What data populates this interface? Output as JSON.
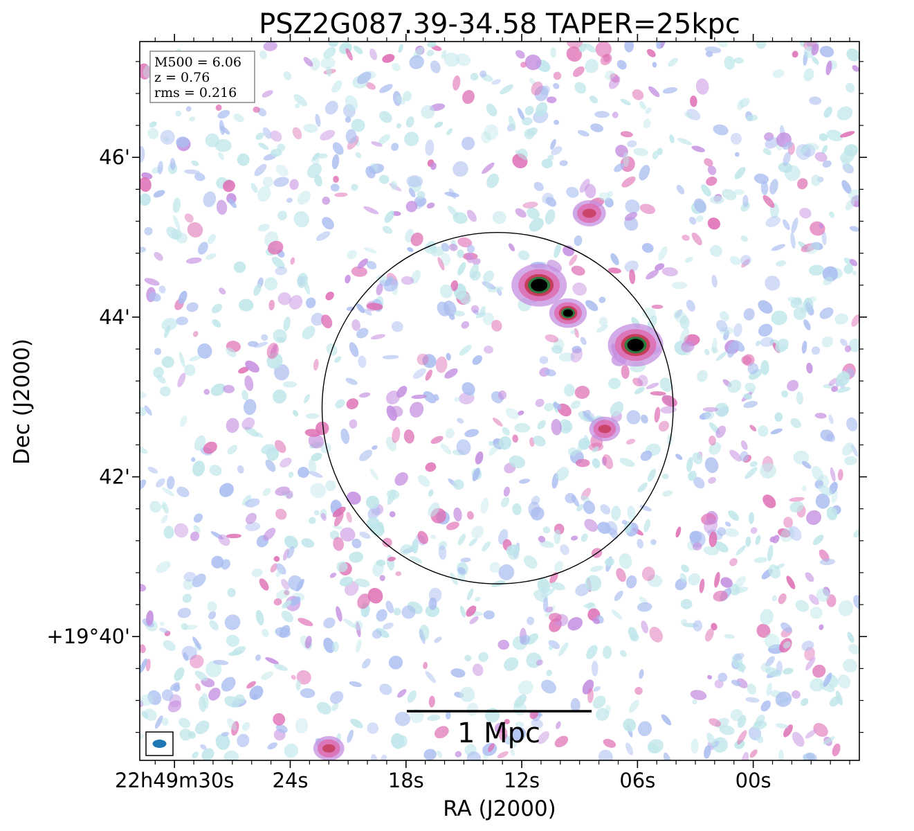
{
  "chart_data": {
    "type": "heatmap",
    "title": "PSZ2G087.39-34.58 TAPER=25kpc",
    "xlabel": "RA (J2000)",
    "ylabel": "Dec (J2000)",
    "x_ticks": [
      "22h49m30s",
      "24s",
      "18s",
      "12s",
      "06s",
      "00s"
    ],
    "y_ticks": [
      "+19°40'",
      "42'",
      "44'",
      "46'"
    ],
    "x_tick_seconds": [
      30,
      24,
      18,
      12,
      6,
      0
    ],
    "y_tick_arcmin": [
      40,
      42,
      44,
      46
    ],
    "x_range_seconds": [
      31.8,
      -5.5
    ],
    "y_range_arcmin": [
      38.45,
      47.45
    ],
    "info": {
      "m500": "M500 = 6.06",
      "z": "z = 0.76",
      "rms": "rms = 0.216"
    },
    "scale_bar_label": "1 Mpc",
    "r500_circle": {
      "center_ra_seconds": 13.25,
      "center_dec_arcmin": 42.86,
      "radius_arcmin": 2.2
    },
    "bright_sources": [
      {
        "ra_seconds": 11.1,
        "dec_arcmin": 44.4,
        "intensity": 1.0
      },
      {
        "ra_seconds": 9.6,
        "dec_arcmin": 44.05,
        "intensity": 0.6
      },
      {
        "ra_seconds": 6.1,
        "dec_arcmin": 43.65,
        "intensity": 1.0
      },
      {
        "ra_seconds": 8.5,
        "dec_arcmin": 45.3,
        "intensity": 0.5
      },
      {
        "ra_seconds": 7.7,
        "dec_arcmin": 42.6,
        "intensity": 0.45
      },
      {
        "ra_seconds": 22.0,
        "dec_arcmin": 38.6,
        "intensity": 0.45
      }
    ],
    "colormap": [
      "#ffffff",
      "#bfe6ea",
      "#aabdf0",
      "#c48fe0",
      "#de6fb4",
      "#c53d5a",
      "#2d7a3e",
      "#000000"
    ],
    "beam_color": "#1f77b4"
  }
}
